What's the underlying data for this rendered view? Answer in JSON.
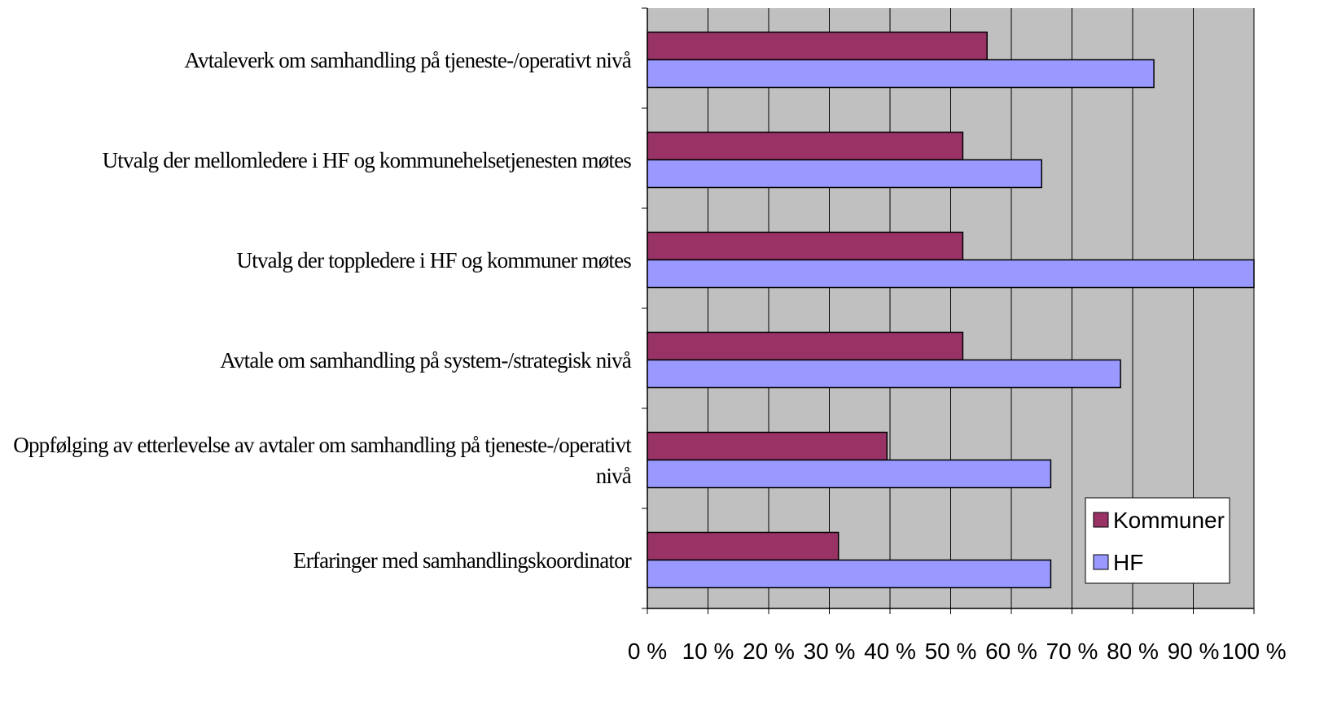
{
  "chart_data": {
    "type": "barh",
    "categories": [
      "Avtaleverk om samhandling på tjeneste-/operativt nivå",
      "Utvalg der mellomledere i HF og kommunehelsetjenesten møtes",
      "Utvalg der toppledere i HF og kommuner møtes",
      "Avtale om samhandling på system-/strategisk nivå",
      "Oppfølging av etterlevelse av avtaler om samhandling på tjeneste-/operativt nivå",
      "Erfaringer med samhandlingskoordinator"
    ],
    "series": [
      {
        "name": "Kommuner",
        "color": "#993366",
        "values": [
          56,
          52,
          52,
          52,
          39.5,
          31.5
        ]
      },
      {
        "name": "HF",
        "color": "#9999ff",
        "values": [
          83.5,
          65,
          100,
          78,
          66.5,
          66.5
        ]
      }
    ],
    "xlim": [
      0,
      100
    ],
    "xticks": [
      {
        "value": 0,
        "label": "0 %"
      },
      {
        "value": 10,
        "label": "10 %"
      },
      {
        "value": 20,
        "label": "20 %"
      },
      {
        "value": 30,
        "label": "30 %"
      },
      {
        "value": 40,
        "label": "40 %"
      },
      {
        "value": 50,
        "label": "50 %"
      },
      {
        "value": 60,
        "label": "60 %"
      },
      {
        "value": 70,
        "label": "70 %"
      },
      {
        "value": 80,
        "label": "80 %"
      },
      {
        "value": 90,
        "label": "90 %"
      },
      {
        "value": 100,
        "label": "100 %"
      }
    ],
    "grid": true,
    "legend": "lower right",
    "plot_background": "#c0c0c0"
  }
}
